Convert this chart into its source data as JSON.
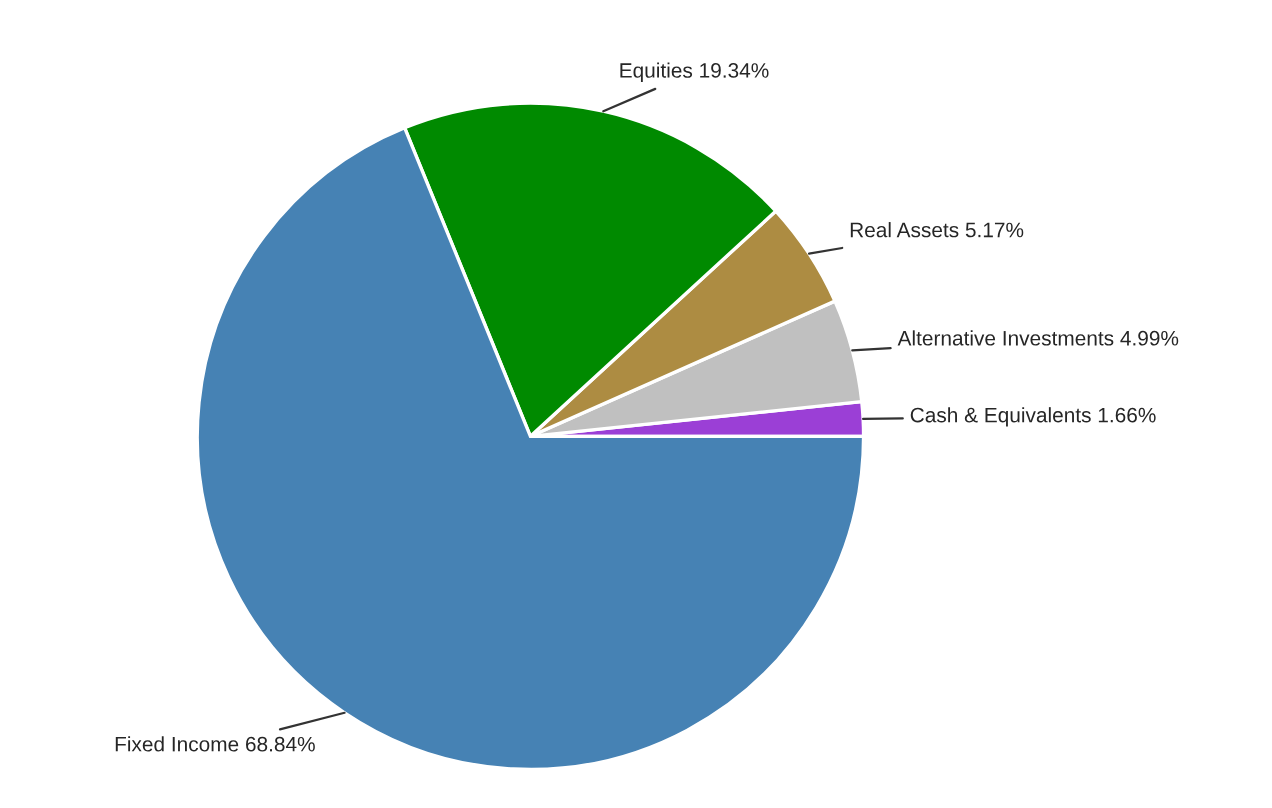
{
  "chart_data": {
    "type": "pie",
    "categories": [
      "Cash & Equivalents",
      "Alternative Investments",
      "Real Assets",
      "Equities",
      "Fixed Income"
    ],
    "values": [
      1.66,
      4.99,
      5.17,
      19.34,
      68.84
    ],
    "value_labels": [
      "1.66%",
      "4.99%",
      "5.17%",
      "19.34%",
      "68.84%"
    ],
    "colors": [
      "#9b3fd6",
      "#c0c0c0",
      "#ad8c42",
      "#008a00",
      "#4682b4"
    ],
    "legend": false
  }
}
